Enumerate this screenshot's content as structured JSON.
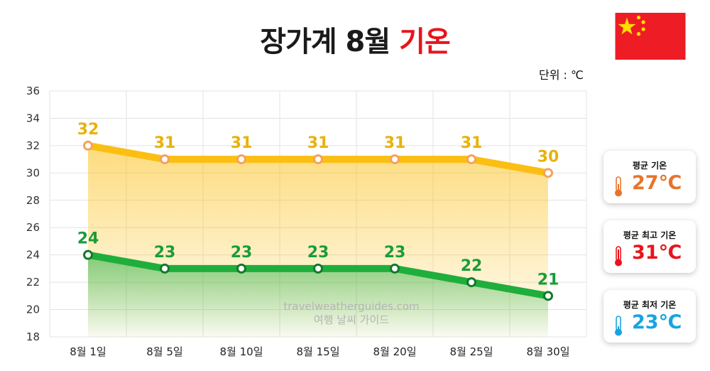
{
  "header": {
    "title_main": "장가계 8월",
    "title_accent": "기온",
    "unit": "단위 : ℃"
  },
  "colors": {
    "accent": "#e8141c",
    "high_line": "#fbbf14",
    "high_point_ring": "#f5a25a",
    "low_line": "#1fae3c",
    "low_point_ring": "#117a2a",
    "avg": "#e8742c",
    "max": "#e8141c",
    "min": "#18a4e0",
    "flag_red": "#ee1c25",
    "flag_star": "#ffde00"
  },
  "chart_data": {
    "type": "line",
    "categories": [
      "8월 1일",
      "8월 5일",
      "8월 10일",
      "8월 15일",
      "8월 20일",
      "8월 25일",
      "8월 30일"
    ],
    "series": [
      {
        "values": [
          32,
          31,
          31,
          31,
          31,
          31,
          30
        ]
      },
      {
        "values": [
          24,
          23,
          23,
          23,
          23,
          22,
          21
        ]
      }
    ],
    "ylim": [
      18,
      36
    ],
    "yticks": [
      18,
      20,
      22,
      24,
      26,
      28,
      30,
      32,
      34,
      36
    ],
    "grid": true,
    "area_fill": true,
    "data_labels": true
  },
  "summary_cards": [
    {
      "label": "평균 기온",
      "value": "27℃",
      "icon": "thermometer-icon"
    },
    {
      "label": "평균 최고 기온",
      "value": "31℃",
      "icon": "thermometer-icon"
    },
    {
      "label": "평균 최저 기온",
      "value": "23℃",
      "icon": "thermometer-icon"
    }
  ],
  "watermark": {
    "line1": "travelweatherguides.com",
    "line2": "여행 날씨 가이드"
  }
}
